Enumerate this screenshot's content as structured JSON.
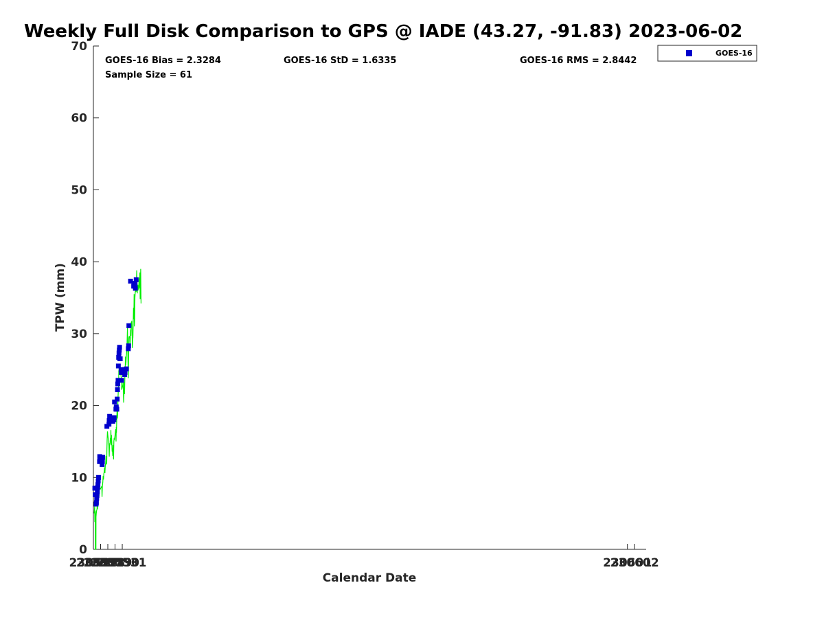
{
  "chart_data": {
    "type": "scatter",
    "title": "Weekly Full Disk Comparison to GPS @ IADE (43.27, -91.83) 2023-06-02",
    "xlabel": "Calendar Date",
    "ylabel": "TPW (mm)",
    "xlim": [
      230527,
      230603.6
    ],
    "ylim": [
      0,
      70
    ],
    "y_ticks": [
      0,
      10,
      20,
      30,
      40,
      50,
      60,
      70
    ],
    "x_ticks": [
      {
        "value": 230527,
        "label": "230527"
      },
      {
        "value": 230528,
        "label": "230528"
      },
      {
        "value": 230529,
        "label": "230529"
      },
      {
        "value": 230530,
        "label": "230530"
      },
      {
        "value": 230531,
        "label": "230531"
      },
      {
        "value": 230601,
        "label": "230601"
      },
      {
        "value": 230602,
        "label": "230602"
      }
    ],
    "stats": {
      "bias": "GOES-16 Bias = 2.3284",
      "std": "GOES-16 StD = 1.6335",
      "rms": "GOES-16 RMS = 2.8442",
      "sample": "Sample Size = 61"
    },
    "legend": {
      "position": "top-right",
      "entries": [
        "GOES-16"
      ]
    },
    "colors": {
      "goes": "#0000cc",
      "gps": "#00ee00"
    },
    "series": [
      {
        "name": "GOES-16",
        "marker": "square",
        "points": [
          [
            230527.2,
            8.5
          ],
          [
            230527.25,
            7.6
          ],
          [
            230527.38,
            6.3
          ],
          [
            230527.42,
            6.5
          ],
          [
            230527.46,
            7.1
          ],
          [
            230527.5,
            7.5
          ],
          [
            230527.55,
            8.0
          ],
          [
            230527.59,
            8.6
          ],
          [
            230527.63,
            9.0
          ],
          [
            230527.67,
            9.5
          ],
          [
            230527.72,
            10.0
          ],
          [
            230527.85,
            12.2
          ],
          [
            230527.88,
            12.9
          ],
          [
            230527.94,
            12.7
          ],
          [
            230528.21,
            11.8
          ],
          [
            230528.25,
            12.2
          ],
          [
            230528.29,
            12.8
          ],
          [
            230528.87,
            17.1
          ],
          [
            230529.16,
            17.4
          ],
          [
            230529.19,
            17.9
          ],
          [
            230529.25,
            18.5
          ],
          [
            230529.7,
            17.8
          ],
          [
            230529.74,
            18.3
          ],
          [
            230529.84,
            18.0
          ],
          [
            230529.88,
            18.3
          ],
          [
            230529.93,
            20.5
          ],
          [
            230530.12,
            19.5
          ],
          [
            230530.17,
            19.8
          ],
          [
            230530.21,
            19.5
          ],
          [
            230530.25,
            19.5
          ],
          [
            230530.3,
            20.9
          ],
          [
            230530.34,
            22.2
          ],
          [
            230530.38,
            23.0
          ],
          [
            230530.42,
            23.5
          ],
          [
            230530.46,
            25.5
          ],
          [
            230530.5,
            26.7
          ],
          [
            230530.55,
            27.3
          ],
          [
            230530.59,
            27.7
          ],
          [
            230530.63,
            28.1
          ],
          [
            230530.67,
            26.5
          ],
          [
            230530.72,
            26.5
          ],
          [
            230530.84,
            25.0
          ],
          [
            230530.88,
            24.6
          ],
          [
            230530.92,
            23.5
          ],
          [
            230531.17,
            24.6
          ],
          [
            230531.21,
            24.8
          ],
          [
            230531.25,
            25.0
          ],
          [
            230531.29,
            24.6
          ],
          [
            230531.34,
            24.3
          ],
          [
            230531.38,
            24.6
          ],
          [
            230531.58,
            25.1
          ],
          [
            230531.84,
            27.9
          ],
          [
            230531.88,
            28.3
          ],
          [
            230531.92,
            31.1
          ],
          [
            230532.15,
            37.3
          ],
          [
            230532.58,
            36.6
          ],
          [
            230532.62,
            37.0
          ],
          [
            230532.72,
            36.6
          ],
          [
            230532.78,
            37.0
          ],
          [
            230532.82,
            36.3
          ],
          [
            230532.93,
            37.5
          ]
        ]
      },
      {
        "name": "GPS",
        "points": [
          [
            230527.1,
            5.0
          ],
          [
            230527.14,
            5.5
          ],
          [
            230527.18,
            6.0
          ],
          [
            230527.2,
            3.8
          ],
          [
            230527.23,
            4.6
          ],
          [
            230527.25,
            5.4
          ],
          [
            230527.27,
            5.2
          ],
          [
            230527.28,
            0.0
          ],
          [
            230527.35,
            0.0
          ],
          [
            230527.36,
            4.5
          ],
          [
            230527.4,
            5.0
          ],
          [
            230527.45,
            5.4
          ],
          [
            230527.5,
            5.6
          ],
          [
            230527.53,
            6.5
          ],
          [
            230527.57,
            5.6
          ],
          [
            230527.6,
            6.2
          ],
          [
            230527.65,
            6.6
          ],
          [
            230527.7,
            7.0
          ],
          [
            230527.75,
            7.3
          ],
          [
            230527.8,
            7.5
          ],
          [
            230527.83,
            8.5
          ],
          [
            230527.87,
            8.4
          ],
          [
            230527.92,
            8.5
          ],
          [
            230527.97,
            8.4
          ],
          [
            230528.02,
            8.5
          ],
          [
            230528.08,
            8.6
          ],
          [
            230528.13,
            8.7
          ],
          [
            230528.17,
            8.8
          ],
          [
            230528.2,
            7.3
          ],
          [
            230528.22,
            8.0
          ],
          [
            230528.25,
            8.8
          ],
          [
            230528.3,
            9.3
          ],
          [
            230528.35,
            10.2
          ],
          [
            230528.4,
            9.7
          ],
          [
            230528.45,
            10.5
          ],
          [
            230528.5,
            10.8
          ],
          [
            230528.55,
            11.4
          ],
          [
            230528.6,
            10.6
          ],
          [
            230528.65,
            11.6
          ],
          [
            230528.7,
            12.0
          ],
          [
            230528.75,
            13.0
          ],
          [
            230528.8,
            12.6
          ],
          [
            230528.85,
            11.8
          ],
          [
            230528.87,
            14.0
          ],
          [
            230528.9,
            15.2
          ],
          [
            230528.95,
            16.4
          ],
          [
            230529.0,
            15.9
          ],
          [
            230529.05,
            15.5
          ],
          [
            230529.1,
            14.9
          ],
          [
            230529.15,
            14.4
          ],
          [
            230529.18,
            13.3
          ],
          [
            230529.2,
            12.9
          ],
          [
            230529.23,
            14.2
          ],
          [
            230529.27,
            14.8
          ],
          [
            230529.3,
            14.7
          ],
          [
            230529.35,
            15.5
          ],
          [
            230529.4,
            15.2
          ],
          [
            230529.43,
            16.6
          ],
          [
            230529.46,
            14.5
          ],
          [
            230529.5,
            15.9
          ],
          [
            230529.55,
            15.0
          ],
          [
            230529.6,
            13.6
          ],
          [
            230529.64,
            14.0
          ],
          [
            230529.68,
            13.0
          ],
          [
            230529.72,
            14.5
          ],
          [
            230529.76,
            13.3
          ],
          [
            230529.8,
            12.5
          ],
          [
            230529.84,
            15.0
          ],
          [
            230529.88,
            15.5
          ],
          [
            230529.92,
            15.2
          ],
          [
            230529.97,
            15.6
          ],
          [
            230530.02,
            16.0
          ],
          [
            230530.06,
            16.5
          ],
          [
            230530.1,
            16.7
          ],
          [
            230530.14,
            15.0
          ],
          [
            230530.17,
            17.0
          ],
          [
            230530.2,
            16.2
          ],
          [
            230530.24,
            18.0
          ],
          [
            230530.28,
            19.5
          ],
          [
            230530.32,
            18.2
          ],
          [
            230530.36,
            18.6
          ],
          [
            230530.4,
            20.5
          ],
          [
            230530.44,
            22.0
          ],
          [
            230530.48,
            22.2
          ],
          [
            230530.52,
            24.8
          ],
          [
            230530.56,
            25.0
          ],
          [
            230530.6,
            25.7
          ],
          [
            230530.64,
            24.8
          ],
          [
            230530.68,
            24.6
          ],
          [
            230530.72,
            24.4
          ],
          [
            230530.76,
            24.8
          ],
          [
            230530.8,
            24.4
          ],
          [
            230530.84,
            24.0
          ],
          [
            230530.88,
            23.8
          ],
          [
            230530.92,
            22.2
          ],
          [
            230530.96,
            22.3
          ],
          [
            230531.0,
            22.5
          ],
          [
            230531.04,
            22.7
          ],
          [
            230531.08,
            22.9
          ],
          [
            230531.12,
            23.4
          ],
          [
            230531.16,
            22.0
          ],
          [
            230531.2,
            20.4
          ],
          [
            230531.24,
            21.8
          ],
          [
            230531.28,
            23.2
          ],
          [
            230531.32,
            21.6
          ],
          [
            230531.36,
            23.8
          ],
          [
            230531.4,
            24.8
          ],
          [
            230531.44,
            26.8
          ],
          [
            230531.48,
            25.6
          ],
          [
            230531.52,
            26.0
          ],
          [
            230531.56,
            26.8
          ],
          [
            230531.6,
            27.2
          ],
          [
            230531.64,
            28.0
          ],
          [
            230531.68,
            29.3
          ],
          [
            230531.72,
            30.8
          ],
          [
            230531.76,
            28.2
          ],
          [
            230531.8,
            26.0
          ],
          [
            230531.84,
            23.8
          ],
          [
            230531.88,
            27.2
          ],
          [
            230531.92,
            29.4
          ],
          [
            230531.96,
            29.6
          ],
          [
            230532.0,
            29.6
          ],
          [
            230532.04,
            29.5
          ],
          [
            230532.08,
            28.0
          ],
          [
            230532.12,
            29.4
          ],
          [
            230532.16,
            30.6
          ],
          [
            230532.2,
            29.7
          ],
          [
            230532.24,
            31.6
          ],
          [
            230532.28,
            31.3
          ],
          [
            230532.32,
            31.8
          ],
          [
            230532.36,
            30.6
          ],
          [
            230532.4,
            28.0
          ],
          [
            230532.44,
            29.0
          ],
          [
            230532.48,
            29.5
          ],
          [
            230532.52,
            31.5
          ],
          [
            230532.56,
            33.6
          ],
          [
            230532.6,
            32.0
          ],
          [
            230532.64,
            35.5
          ],
          [
            230532.68,
            31.0
          ],
          [
            230532.72,
            31.7
          ],
          [
            230532.76,
            35.0
          ],
          [
            230532.8,
            35.8
          ],
          [
            230532.84,
            36.0
          ],
          [
            230532.88,
            36.0
          ],
          [
            230532.92,
            35.8
          ],
          [
            230532.96,
            36.5
          ],
          [
            230533.0,
            38.8
          ],
          [
            230533.04,
            37.0
          ],
          [
            230533.08,
            35.6
          ],
          [
            230533.12,
            36.3
          ],
          [
            230533.16,
            36.8
          ],
          [
            230533.2,
            36.0
          ],
          [
            230533.24,
            36.7
          ],
          [
            230533.28,
            36.2
          ],
          [
            230533.32,
            37.5
          ],
          [
            230533.36,
            37.8
          ],
          [
            230533.4,
            36.4
          ],
          [
            230533.44,
            38.5
          ],
          [
            230533.48,
            34.8
          ],
          [
            230533.52,
            36.6
          ],
          [
            230533.56,
            39.0
          ],
          [
            230533.6,
            34.2
          ]
        ]
      }
    ]
  }
}
